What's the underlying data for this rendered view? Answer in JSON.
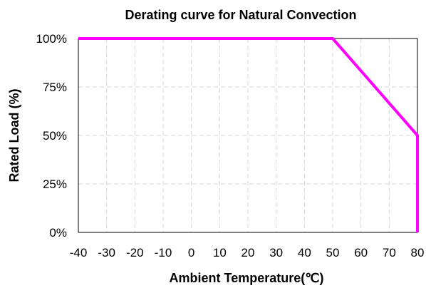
{
  "chart_data": {
    "type": "line",
    "title": "Derating curve for Natural Convection",
    "xlabel": "Ambient Temperature(℃)",
    "ylabel": "Rated Load (%)",
    "xlim": [
      -40,
      80
    ],
    "ylim": [
      0,
      100
    ],
    "x_ticks": [
      -40,
      -30,
      -20,
      -10,
      0,
      10,
      20,
      30,
      40,
      50,
      60,
      70,
      80
    ],
    "y_ticks": [
      0,
      25,
      50,
      75,
      100
    ],
    "y_tick_labels": [
      "0%",
      "25%",
      "50%",
      "75%",
      "100%"
    ],
    "grid": true,
    "series": [
      {
        "color": "#ff00ff",
        "x": [
          -40,
          50,
          80,
          80
        ],
        "y": [
          100,
          100,
          50,
          0
        ]
      }
    ]
  }
}
